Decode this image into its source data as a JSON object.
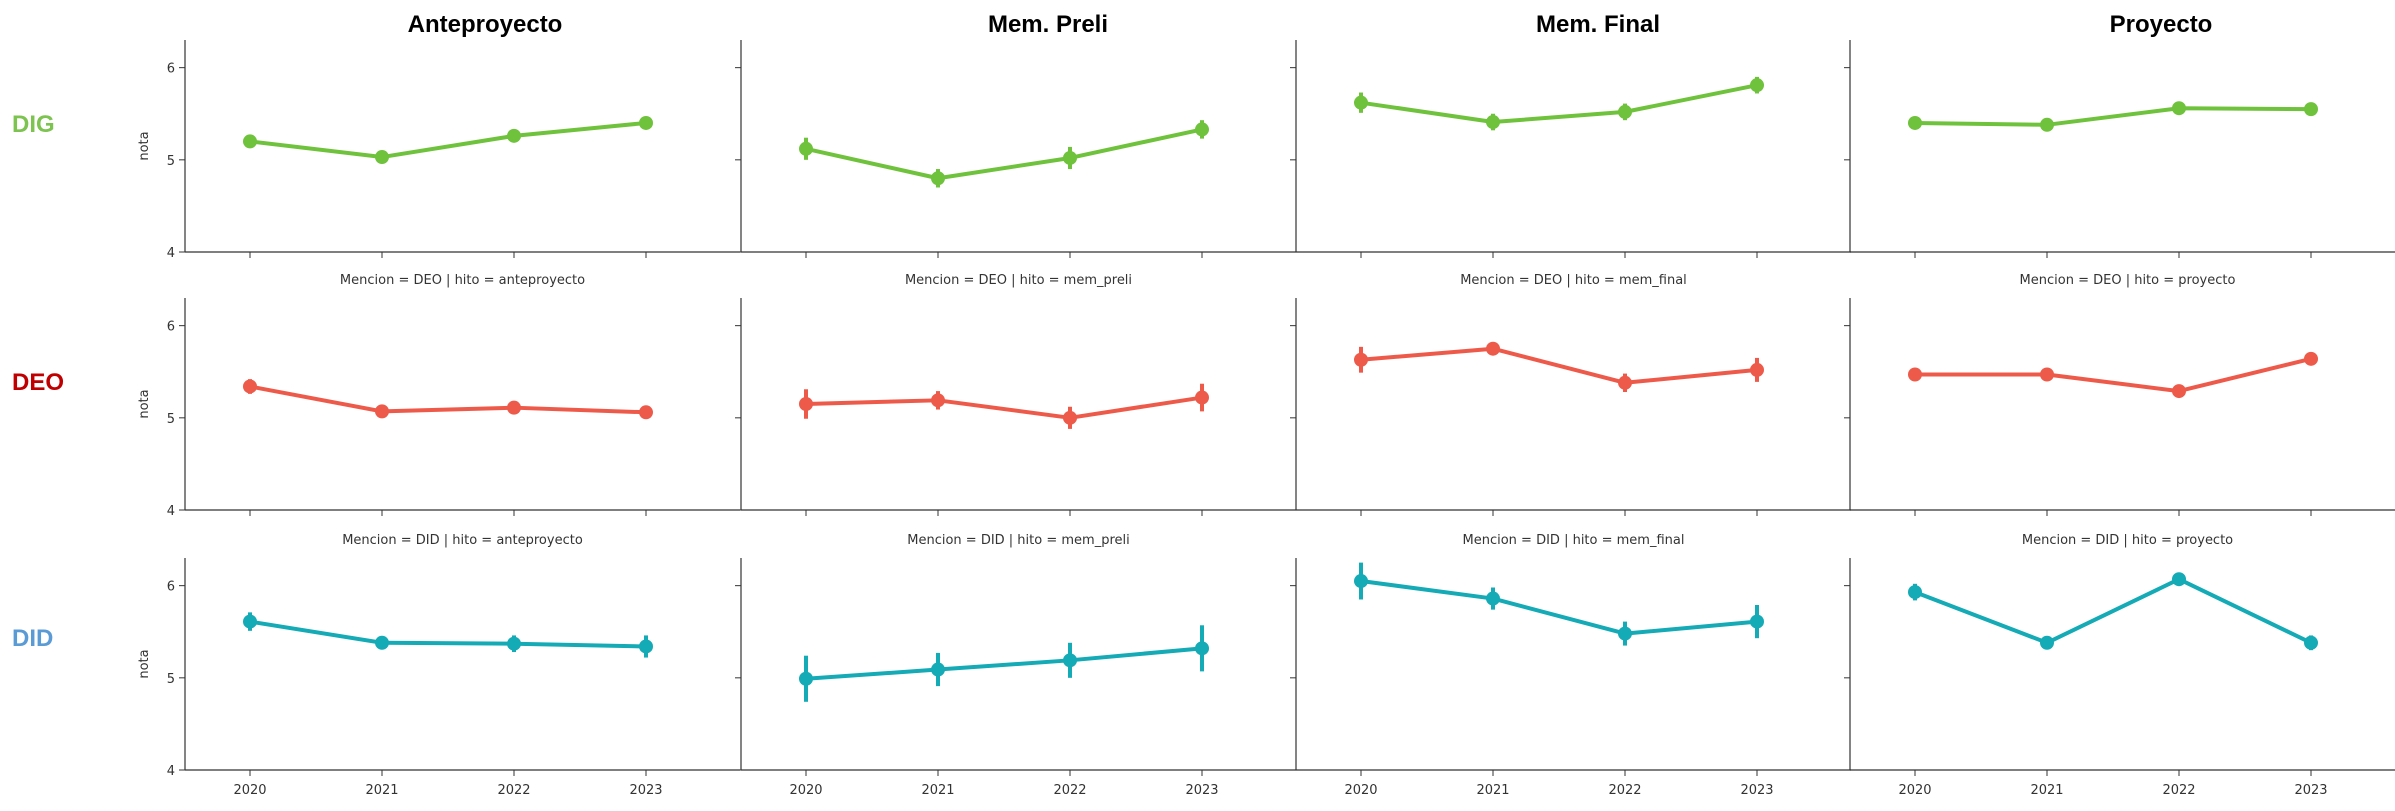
{
  "column_titles": [
    "Anteproyecto",
    "Mem. Preli",
    "Mem. Final",
    "Proyecto"
  ],
  "row_labels": [
    {
      "text": "DIG",
      "color": "#7cc34f"
    },
    {
      "text": "DEO",
      "color": "#c00000"
    },
    {
      "text": "DID",
      "color": "#5b9bd5"
    }
  ],
  "series_colors": {
    "DIG": "#6fc23b",
    "DEO": "#ee5a4a",
    "DID": "#14aab6"
  },
  "chart_data": {
    "type": "line",
    "x": [
      "2020",
      "2021",
      "2022",
      "2023"
    ],
    "ylabel": "nota",
    "ylim": [
      4,
      6.3
    ],
    "yticks": [
      4,
      5,
      6
    ],
    "grid": false,
    "panels": [
      {
        "row": "DIG",
        "col": "Anteproyecto",
        "title": "",
        "values": [
          5.2,
          5.03,
          5.26,
          5.4
        ],
        "ci": [
          0.05,
          0.04,
          0.05,
          0.05
        ]
      },
      {
        "row": "DIG",
        "col": "Mem. Preli",
        "title": "",
        "values": [
          5.12,
          4.8,
          5.02,
          5.33
        ],
        "ci": [
          0.12,
          0.1,
          0.12,
          0.1
        ]
      },
      {
        "row": "DIG",
        "col": "Mem. Final",
        "title": "",
        "values": [
          5.62,
          5.41,
          5.52,
          5.81
        ],
        "ci": [
          0.11,
          0.09,
          0.09,
          0.09
        ]
      },
      {
        "row": "DIG",
        "col": "Proyecto",
        "title": "",
        "values": [
          5.4,
          5.38,
          5.56,
          5.55
        ],
        "ci": [
          0.04,
          0.04,
          0.05,
          0.04
        ]
      },
      {
        "row": "DEO",
        "col": "Anteproyecto",
        "title": "Mencion = DEO | hito = anteproyecto",
        "values": [
          5.34,
          5.07,
          5.11,
          5.06
        ],
        "ci": [
          0.08,
          0.05,
          0.06,
          0.06
        ]
      },
      {
        "row": "DEO",
        "col": "Mem. Preli",
        "title": "Mencion = DEO | hito = mem_preli",
        "values": [
          5.15,
          5.19,
          5.0,
          5.22
        ],
        "ci": [
          0.16,
          0.1,
          0.12,
          0.15
        ]
      },
      {
        "row": "DEO",
        "col": "Mem. Final",
        "title": "Mencion = DEO | hito = mem_final",
        "values": [
          5.63,
          5.75,
          5.38,
          5.52
        ],
        "ci": [
          0.14,
          0.06,
          0.1,
          0.13
        ]
      },
      {
        "row": "DEO",
        "col": "Proyecto",
        "title": "Mencion = DEO | hito = proyecto",
        "values": [
          5.47,
          5.47,
          5.29,
          5.64
        ],
        "ci": [
          0.04,
          0.04,
          0.04,
          0.06
        ]
      },
      {
        "row": "DID",
        "col": "Anteproyecto",
        "title": "Mencion = DID | hito = anteproyecto",
        "values": [
          5.61,
          5.38,
          5.37,
          5.34
        ],
        "ci": [
          0.1,
          0.07,
          0.09,
          0.12
        ]
      },
      {
        "row": "DID",
        "col": "Mem. Preli",
        "title": "Mencion = DID | hito = mem_preli",
        "values": [
          4.99,
          5.09,
          5.19,
          5.32
        ],
        "ci": [
          0.25,
          0.18,
          0.19,
          0.25
        ]
      },
      {
        "row": "DID",
        "col": "Mem. Final",
        "title": "Mencion = DID | hito = mem_final",
        "values": [
          6.05,
          5.86,
          5.48,
          5.61
        ],
        "ci": [
          0.2,
          0.12,
          0.13,
          0.18
        ]
      },
      {
        "row": "DID",
        "col": "Proyecto",
        "title": "Mencion = DID | hito = proyecto",
        "values": [
          5.93,
          5.38,
          6.07,
          5.38
        ],
        "ci": [
          0.09,
          0.06,
          0.06,
          0.08
        ]
      }
    ]
  }
}
